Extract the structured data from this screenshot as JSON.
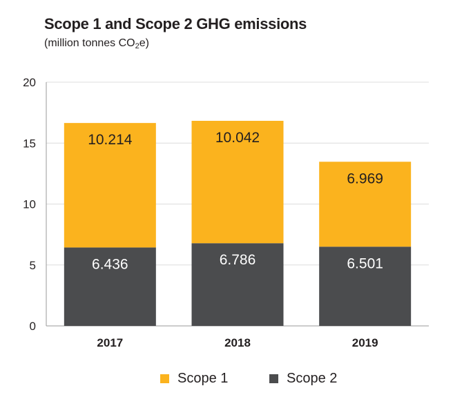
{
  "title": "Scope 1 and Scope 2 GHG emissions",
  "subtitle_prefix": "(million tonnes CO",
  "subtitle_sub": "2",
  "subtitle_suffix": "e)",
  "colors": {
    "scope1": "#fbb31e",
    "scope2": "#4b4c4e",
    "grid": "#dcdcdc",
    "axis": "#9a9a9a"
  },
  "chart_data": {
    "type": "bar",
    "stacked": true,
    "categories": [
      "2017",
      "2018",
      "2019"
    ],
    "series": [
      {
        "name": "Scope 2",
        "values": [
          6.436,
          6.786,
          6.501
        ],
        "value_labels": [
          "6.436",
          "6.786",
          "6.501"
        ]
      },
      {
        "name": "Scope 1",
        "values": [
          10.214,
          10.042,
          6.969
        ],
        "value_labels": [
          "10.214",
          "10.042",
          "6.969"
        ]
      }
    ],
    "ylim": [
      0,
      20
    ],
    "yticks": [
      0,
      5,
      10,
      15,
      20
    ],
    "ytick_labels": [
      "0",
      "5",
      "10",
      "15",
      "20"
    ],
    "grid": true,
    "legend_position": "bottom"
  },
  "legend": [
    {
      "label": "Scope 1",
      "color": "#fbb31e"
    },
    {
      "label": "Scope 2",
      "color": "#4b4c4e"
    }
  ]
}
